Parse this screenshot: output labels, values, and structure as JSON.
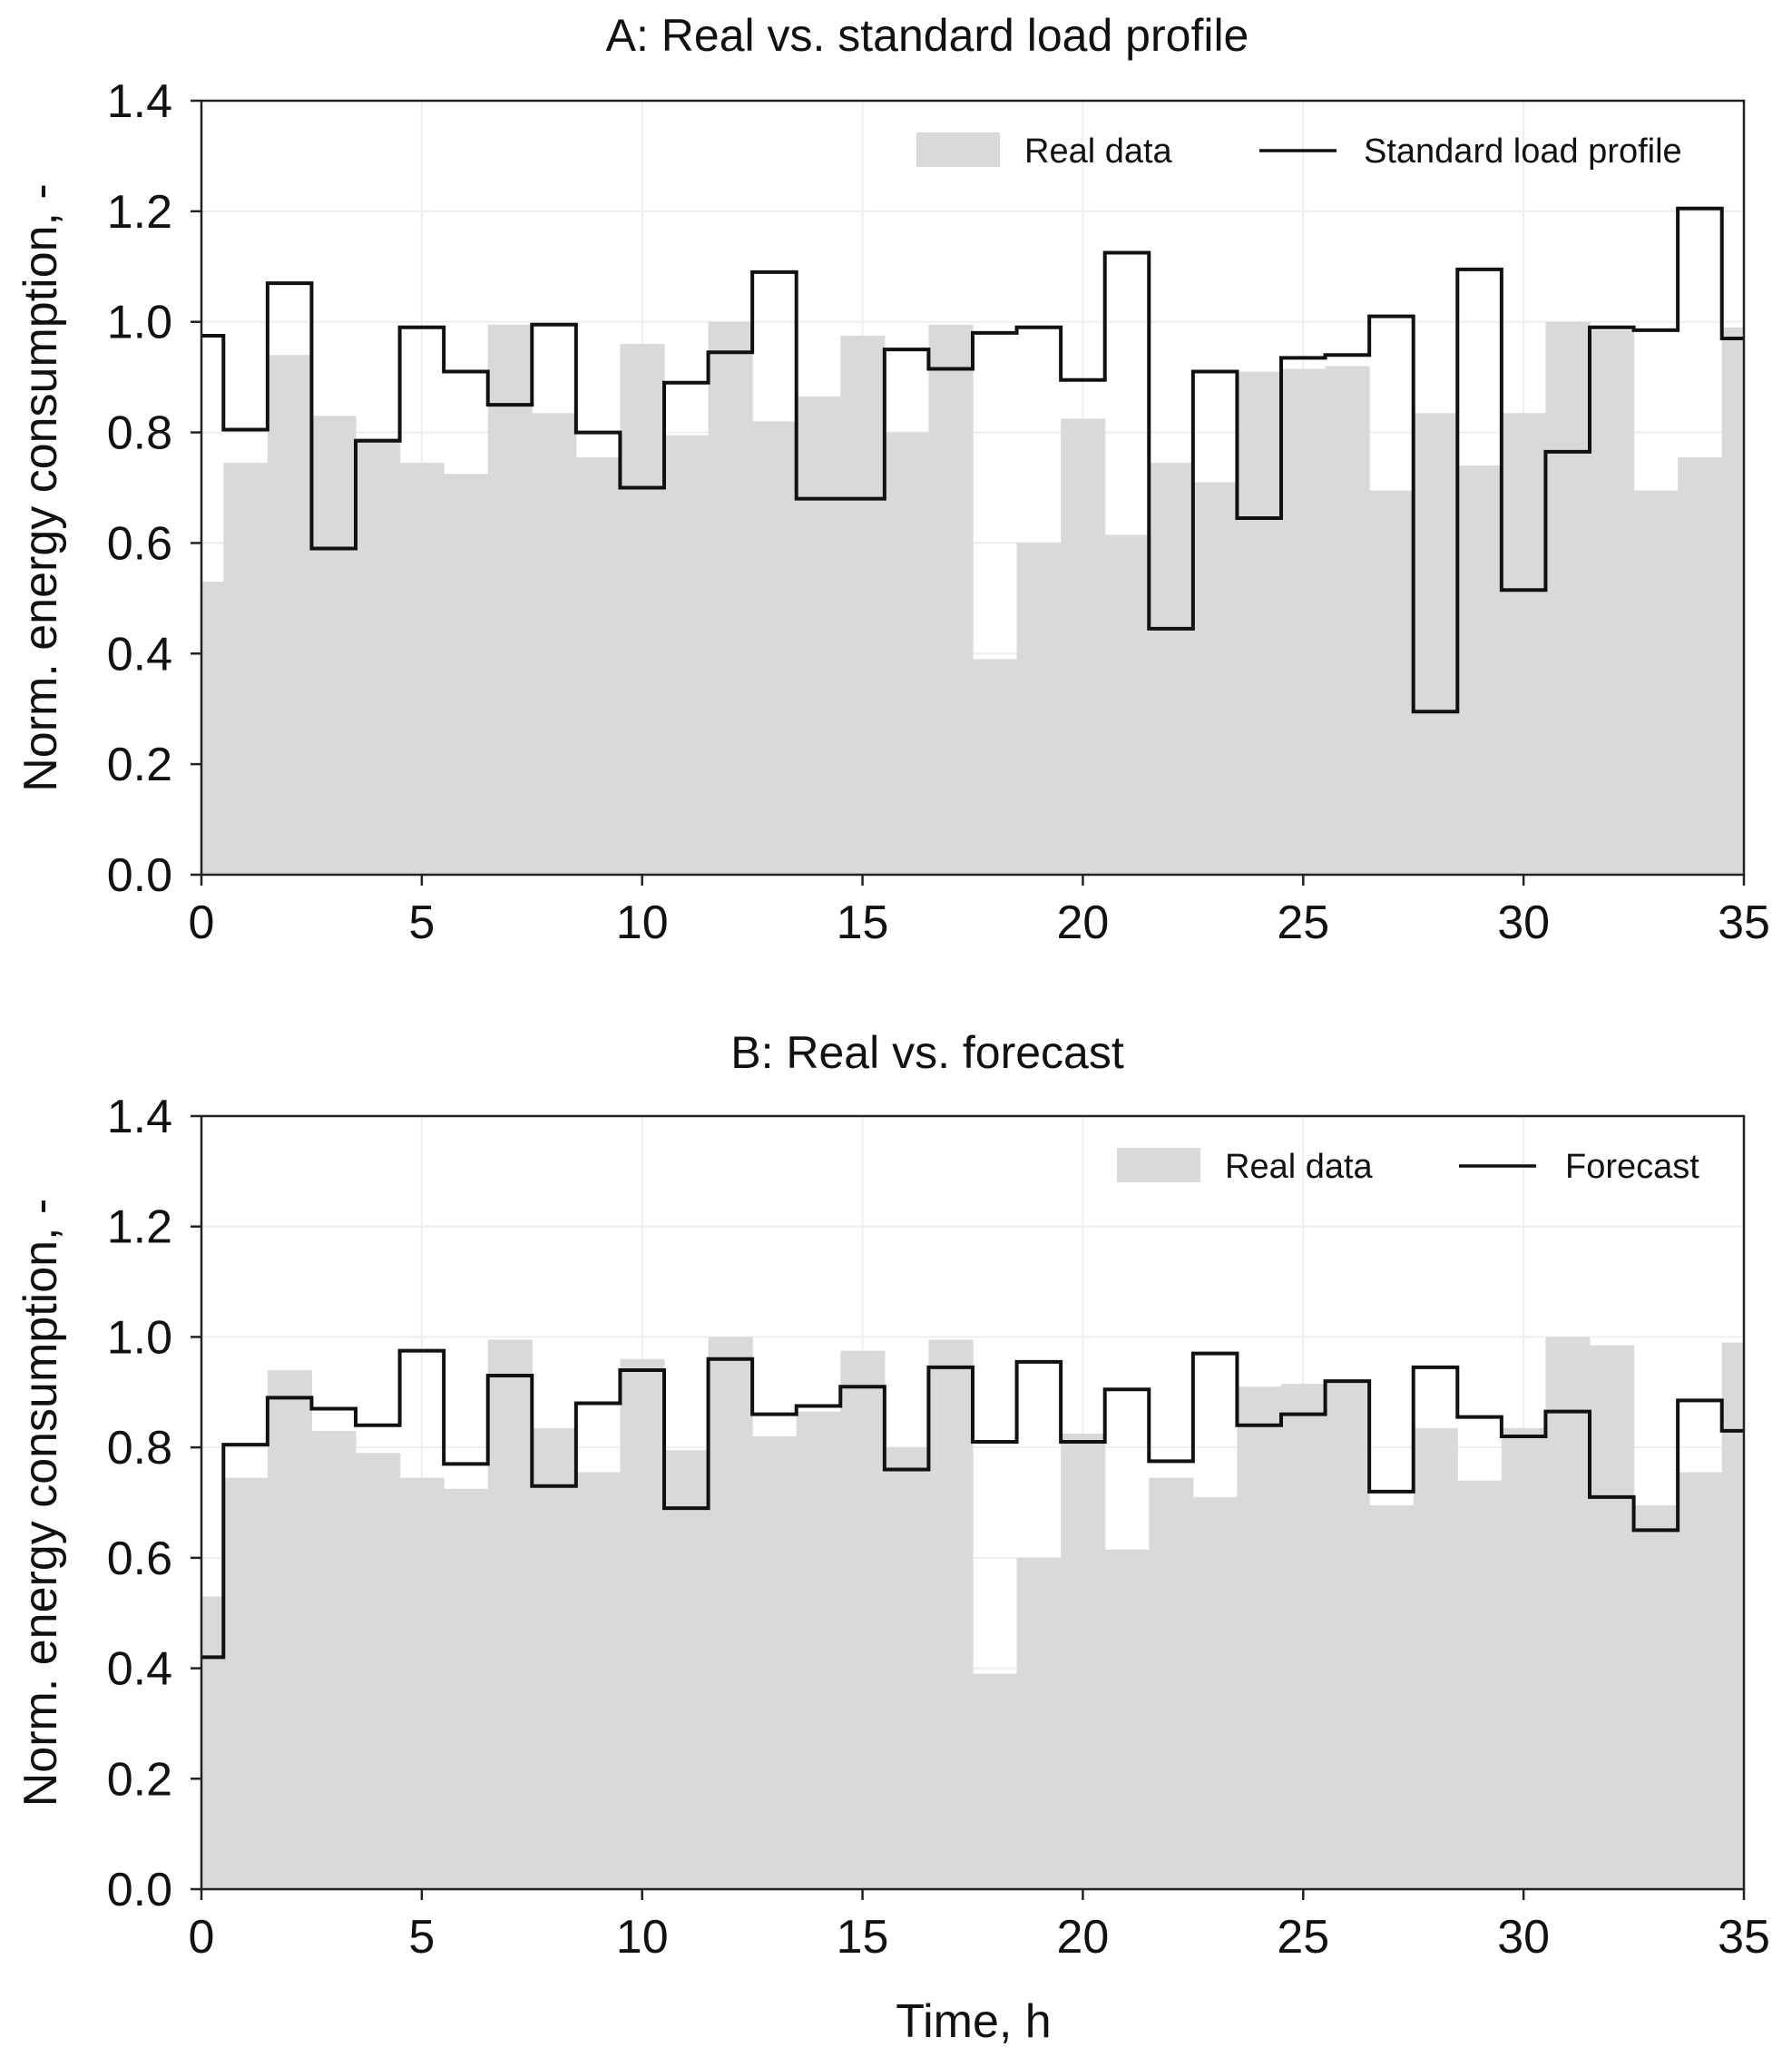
{
  "colors": {
    "real_fill": "#d9d9d9",
    "line": "#111111",
    "grid": "#eeeeee",
    "frame": "#222222"
  },
  "chart_data": [
    {
      "type": "area",
      "title": "A: Real vs. standard load profile",
      "xlabel": "",
      "ylabel": "Norm. energy consumption, -",
      "xlim": [
        0,
        35
      ],
      "ylim": [
        0,
        1.4
      ],
      "xticks": [
        "0",
        "5",
        "10",
        "15",
        "20",
        "25",
        "30",
        "35"
      ],
      "yticks": [
        "0.0",
        "0.2",
        "0.4",
        "0.6",
        "0.8",
        "1.0",
        "1.2",
        "1.4"
      ],
      "grid": true,
      "legend_position": "top-right",
      "series": [
        {
          "name": "Real data",
          "style": "filled step",
          "values": [
            0.53,
            0.745,
            0.94,
            0.83,
            0.79,
            0.745,
            0.725,
            0.995,
            0.835,
            0.755,
            0.96,
            0.795,
            1.0,
            0.82,
            0.865,
            0.975,
            0.8,
            0.995,
            0.39,
            0.6,
            0.825,
            0.615,
            0.745,
            0.71,
            0.91,
            0.915,
            0.92,
            0.695,
            0.835,
            0.74,
            0.835,
            1.0,
            0.985,
            0.695,
            0.755,
            0.99
          ]
        },
        {
          "name": "Standard load profile",
          "style": "step line",
          "values": [
            0.975,
            0.805,
            1.07,
            0.59,
            0.785,
            0.99,
            0.91,
            0.85,
            0.995,
            0.8,
            0.7,
            0.89,
            0.945,
            1.09,
            0.68,
            0.68,
            0.95,
            0.915,
            0.98,
            0.99,
            0.895,
            1.125,
            0.445,
            0.91,
            0.645,
            0.935,
            0.94,
            1.01,
            0.295,
            1.095,
            0.515,
            0.765,
            0.99,
            0.985,
            1.205,
            0.97
          ]
        }
      ]
    },
    {
      "type": "area",
      "title": "B: Real vs. forecast",
      "xlabel": "Time, h",
      "ylabel": "Norm. energy consumption, -",
      "xlim": [
        0,
        35
      ],
      "ylim": [
        0,
        1.4
      ],
      "xticks": [
        "0",
        "5",
        "10",
        "15",
        "20",
        "25",
        "30",
        "35"
      ],
      "yticks": [
        "0.0",
        "0.2",
        "0.4",
        "0.6",
        "0.8",
        "1.0",
        "1.2",
        "1.4"
      ],
      "grid": true,
      "legend_position": "top-right",
      "series": [
        {
          "name": "Real data",
          "style": "filled step",
          "values": [
            0.53,
            0.745,
            0.94,
            0.83,
            0.79,
            0.745,
            0.725,
            0.995,
            0.835,
            0.755,
            0.96,
            0.795,
            1.0,
            0.82,
            0.865,
            0.975,
            0.8,
            0.995,
            0.39,
            0.6,
            0.825,
            0.615,
            0.745,
            0.71,
            0.91,
            0.915,
            0.92,
            0.695,
            0.835,
            0.74,
            0.835,
            1.0,
            0.985,
            0.695,
            0.755,
            0.99
          ]
        },
        {
          "name": "Forecast",
          "style": "step line",
          "values": [
            0.42,
            0.805,
            0.89,
            0.87,
            0.84,
            0.975,
            0.77,
            0.93,
            0.73,
            0.88,
            0.94,
            0.69,
            0.96,
            0.86,
            0.875,
            0.91,
            0.76,
            0.945,
            0.81,
            0.955,
            0.81,
            0.905,
            0.775,
            0.97,
            0.84,
            0.86,
            0.92,
            0.72,
            0.945,
            0.855,
            0.82,
            0.865,
            0.71,
            0.65,
            0.885,
            0.83
          ]
        }
      ]
    }
  ]
}
